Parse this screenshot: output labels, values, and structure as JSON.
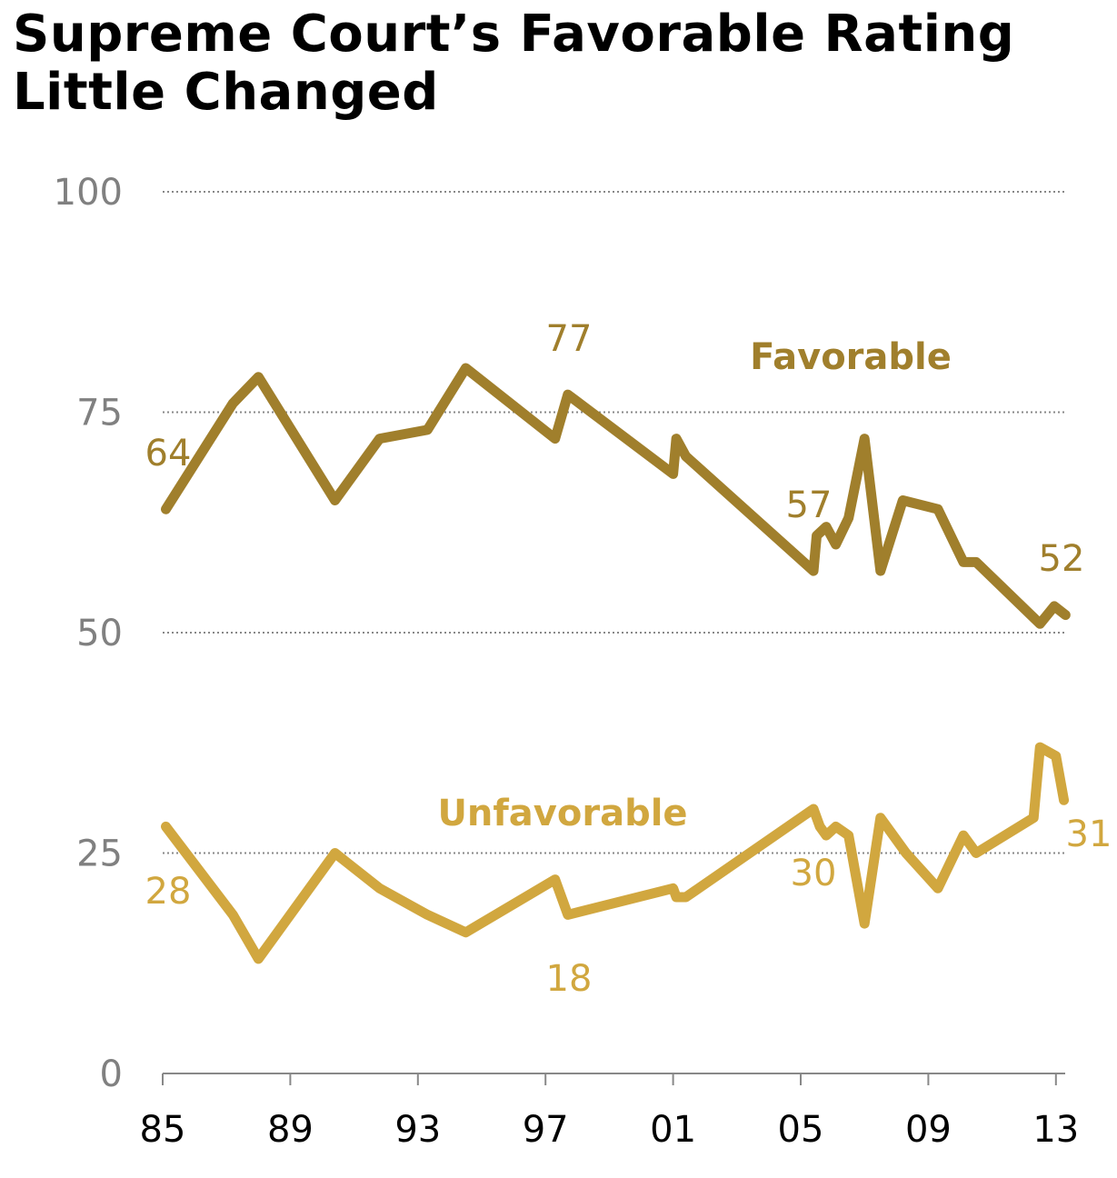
{
  "title": "Supreme Court’s Favorable Rating Little Changed",
  "chart_data": {
    "type": "line",
    "title": "Supreme Court’s Favorable Rating Little Changed",
    "xlabel": "",
    "ylabel": "",
    "xlim": [
      1985,
      2013.3
    ],
    "ylim": [
      0,
      100
    ],
    "x_ticks": [
      1985,
      1989,
      1993,
      1997,
      2001,
      2005,
      2009,
      2013
    ],
    "x_tick_labels": [
      "85",
      "89",
      "93",
      "97",
      "01",
      "05",
      "09",
      "13"
    ],
    "y_ticks": [
      0,
      25,
      50,
      75,
      100
    ],
    "y_tick_labels": [
      "0",
      "25",
      "50",
      "75",
      "100"
    ],
    "grid": "horizontal dotted",
    "series": [
      {
        "name": "Favorable",
        "color": "#A07F2C",
        "x": [
          1985.1,
          1987.2,
          1988.0,
          1990.4,
          1991.8,
          1993.3,
          1994.5,
          1997.3,
          1997.7,
          2001.0,
          2001.1,
          2001.4,
          2005.4,
          2005.5,
          2005.8,
          2006.1,
          2006.5,
          2007.0,
          2007.5,
          2008.2,
          2009.3,
          2010.1,
          2010.5,
          2012.5,
          2012.95,
          2013.3
        ],
        "values": [
          64,
          76,
          79,
          65,
          72,
          73,
          80,
          72,
          77,
          68,
          72,
          70,
          57,
          61,
          62,
          60,
          63,
          72,
          57,
          65,
          64,
          58,
          58,
          51,
          53,
          52
        ]
      },
      {
        "name": "Unfavorable",
        "color": "#D1A73F",
        "x": [
          1985.1,
          1987.2,
          1988.0,
          1990.4,
          1991.8,
          1993.3,
          1994.5,
          1997.3,
          1997.7,
          2001.0,
          2001.1,
          2001.4,
          2005.4,
          2005.6,
          2005.8,
          2006.1,
          2006.5,
          2007.0,
          2007.5,
          2008.3,
          2009.3,
          2010.1,
          2010.5,
          2012.3,
          2012.5,
          2013.0,
          2013.25
        ],
        "values": [
          28,
          18,
          13,
          25,
          21,
          18,
          16,
          22,
          18,
          21,
          20,
          20,
          30,
          28,
          27,
          28,
          27,
          17,
          29,
          25,
          21,
          27,
          25,
          29,
          37,
          36,
          31
        ]
      }
    ],
    "data_labels": [
      {
        "series": "Favorable",
        "text": "64"
      },
      {
        "series": "Favorable",
        "text": "77"
      },
      {
        "series": "Favorable",
        "text": "57"
      },
      {
        "series": "Favorable",
        "text": "52"
      },
      {
        "series": "Unfavorable",
        "text": "28"
      },
      {
        "series": "Unfavorable",
        "text": "18"
      },
      {
        "series": "Unfavorable",
        "text": "30"
      },
      {
        "series": "Unfavorable",
        "text": "31"
      }
    ],
    "legend": "inline labels"
  }
}
